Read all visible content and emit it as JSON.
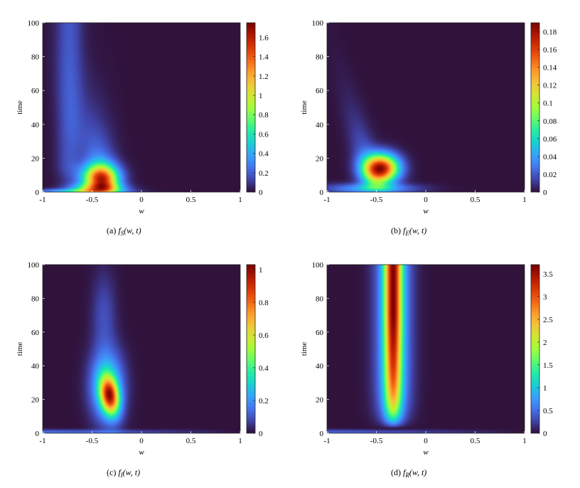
{
  "colormap": [
    "#30123b",
    "#4145ab",
    "#4675ed",
    "#39a2fc",
    "#1bcfd4",
    "#24eca6",
    "#61fc6c",
    "#a4fc3b",
    "#d1e834",
    "#f3c63a",
    "#fe9b2d",
    "#f36315",
    "#d93806",
    "#b11901",
    "#7a0403"
  ],
  "chart_data": [
    {
      "type": "heatmap",
      "id": "a",
      "caption": "(a)",
      "caption_func": "f",
      "caption_sub": "S",
      "caption_args": "(w, t)",
      "xlabel": "w",
      "ylabel": "time",
      "xlim": [
        -1,
        1
      ],
      "ylim": [
        0,
        100
      ],
      "xticks": [
        "-1",
        "-0.5",
        "0",
        "0.5",
        "1"
      ],
      "xtick_values": [
        -1,
        -0.5,
        0,
        0.5,
        1
      ],
      "yticks": [
        "0",
        "20",
        "40",
        "60",
        "80",
        "100"
      ],
      "ytick_values": [
        0,
        20,
        40,
        60,
        80,
        100
      ],
      "colorbar_range": [
        0,
        1.75
      ],
      "colorbar_ticks": [
        "0",
        "0.2",
        "0.4",
        "0.6",
        "0.8",
        "1",
        "1.2",
        "1.4",
        "1.6"
      ],
      "colorbar_tick_values": [
        0,
        0.2,
        0.4,
        0.6,
        0.8,
        1,
        1.2,
        1.4,
        1.6
      ],
      "peak": {
        "w": -0.42,
        "t": 8,
        "value": 1.7
      }
    },
    {
      "type": "heatmap",
      "id": "b",
      "caption": "(b)",
      "caption_func": "f",
      "caption_sub": "E",
      "caption_args": "(w, t)",
      "xlabel": "w",
      "ylabel": "time",
      "xlim": [
        -1,
        1
      ],
      "ylim": [
        0,
        100
      ],
      "xticks": [
        "-1",
        "-0.5",
        "0",
        "0.5",
        "1"
      ],
      "xtick_values": [
        -1,
        -0.5,
        0,
        0.5,
        1
      ],
      "yticks": [
        "0",
        "20",
        "40",
        "60",
        "80",
        "100"
      ],
      "ytick_values": [
        0,
        20,
        40,
        60,
        80,
        100
      ],
      "colorbar_range": [
        0,
        0.19
      ],
      "colorbar_ticks": [
        "0",
        "0.02",
        "0.04",
        "0.06",
        "0.08",
        "0.1",
        "0.12",
        "0.14",
        "0.16",
        "0.18"
      ],
      "colorbar_tick_values": [
        0,
        0.02,
        0.04,
        0.06,
        0.08,
        0.1,
        0.12,
        0.14,
        0.16,
        0.18
      ],
      "peak": {
        "w": -0.45,
        "t": 14,
        "value": 0.19
      }
    },
    {
      "type": "heatmap",
      "id": "c",
      "caption": "(c)",
      "caption_func": "f",
      "caption_sub": "I",
      "caption_args": "(w, t)",
      "xlabel": "w",
      "ylabel": "time",
      "xlim": [
        -1,
        1
      ],
      "ylim": [
        0,
        100
      ],
      "xticks": [
        "-1",
        "-0.5",
        "0",
        "0.5",
        "1"
      ],
      "xtick_values": [
        -1,
        -0.5,
        0,
        0.5,
        1
      ],
      "yticks": [
        "0",
        "20",
        "40",
        "60",
        "80",
        "100"
      ],
      "ytick_values": [
        0,
        20,
        40,
        60,
        80,
        100
      ],
      "colorbar_range": [
        0,
        1.03
      ],
      "colorbar_ticks": [
        "0",
        "0.2",
        "0.4",
        "0.6",
        "0.8",
        "1"
      ],
      "colorbar_tick_values": [
        0,
        0.2,
        0.4,
        0.6,
        0.8,
        1
      ],
      "peak": {
        "w": -0.33,
        "t": 22,
        "value": 1.03
      }
    },
    {
      "type": "heatmap",
      "id": "d",
      "caption": "(d)",
      "caption_func": "f",
      "caption_sub": "R",
      "caption_args": "(w, t)",
      "xlabel": "w",
      "ylabel": "time",
      "xlim": [
        -1,
        1
      ],
      "ylim": [
        0,
        100
      ],
      "xticks": [
        "-1",
        "-0.5",
        "0",
        "0.5",
        "1"
      ],
      "xtick_values": [
        -1,
        -0.5,
        0,
        0.5,
        1
      ],
      "yticks": [
        "0",
        "20",
        "40",
        "60",
        "80",
        "100"
      ],
      "ytick_values": [
        0,
        20,
        40,
        60,
        80,
        100
      ],
      "colorbar_range": [
        0,
        3.7
      ],
      "colorbar_ticks": [
        "0",
        "0.5",
        "1",
        "1.5",
        "2",
        "2.5",
        "3",
        "3.5"
      ],
      "colorbar_tick_values": [
        0,
        0.5,
        1,
        1.5,
        2,
        2.5,
        3,
        3.5
      ],
      "peak": {
        "w": -0.33,
        "t": 90,
        "value": 3.6
      }
    }
  ]
}
